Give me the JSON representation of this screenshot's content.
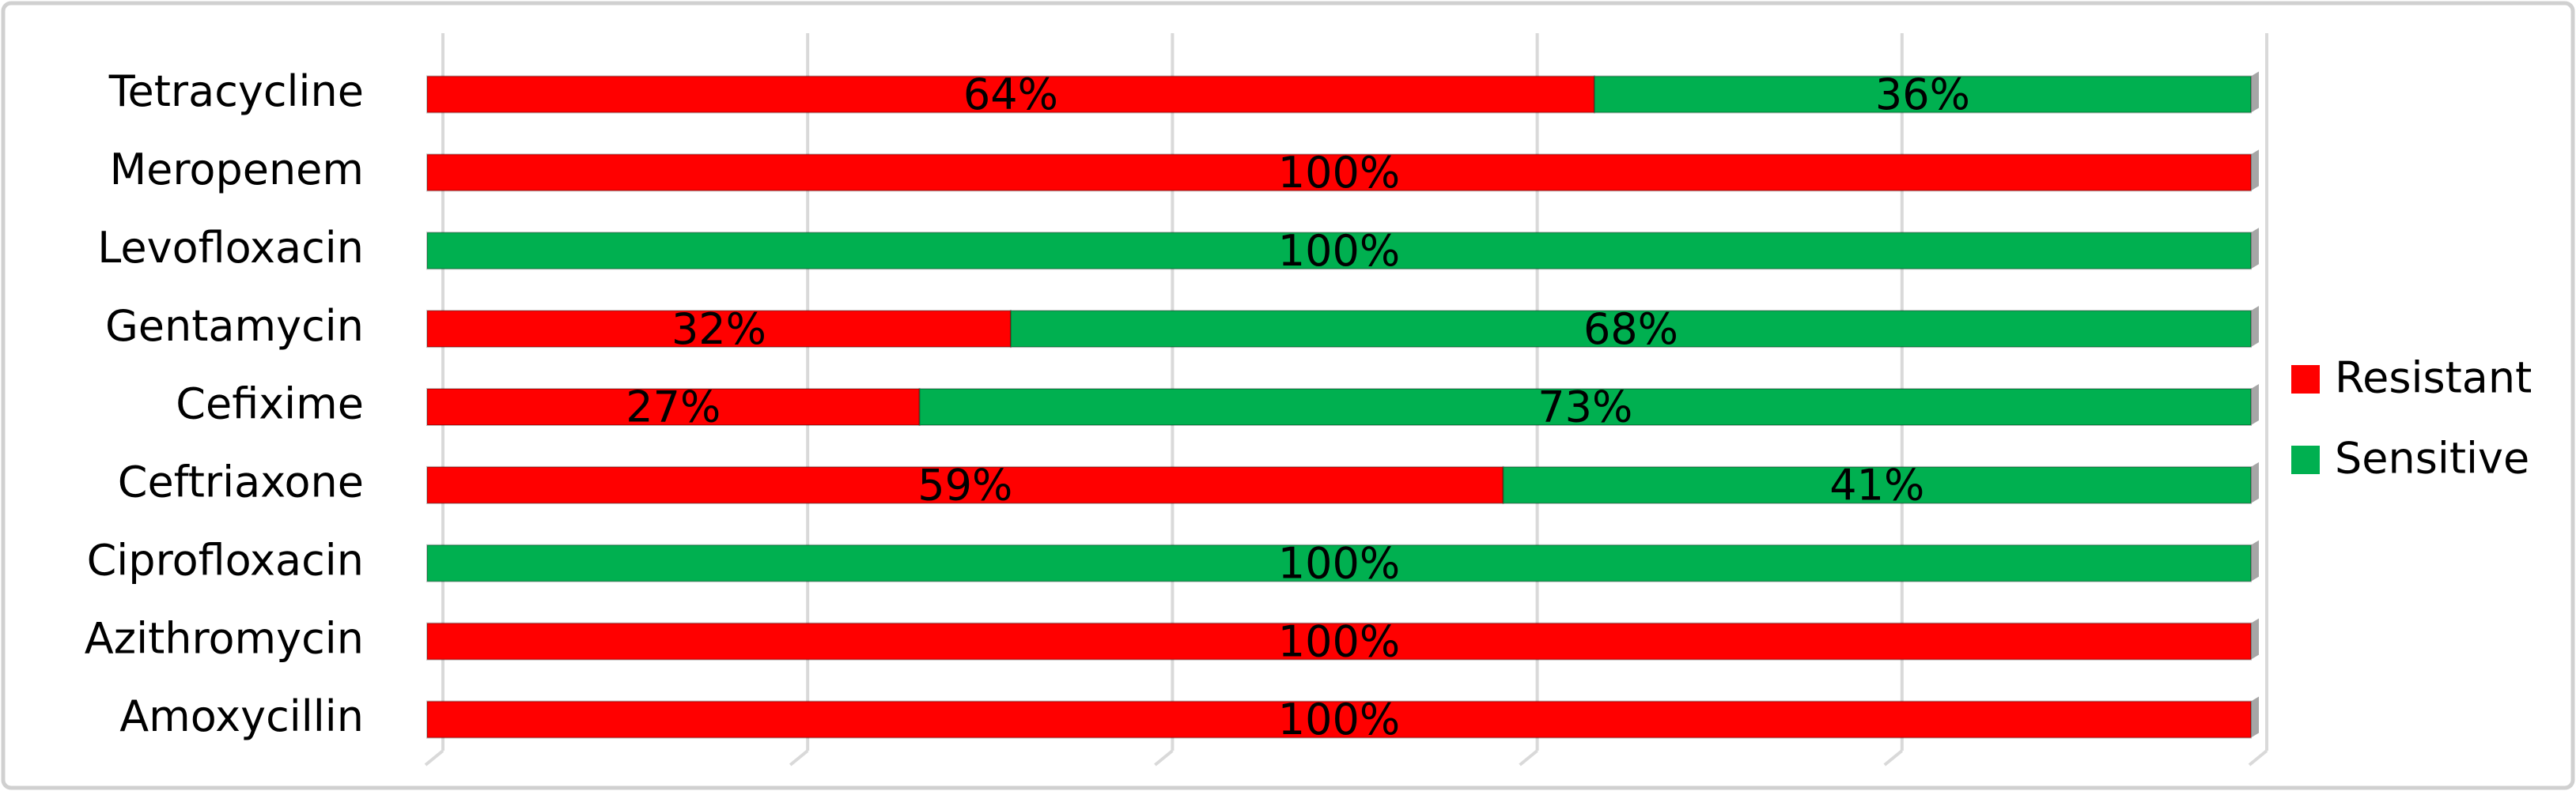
{
  "chart_data": {
    "type": "stacked-bar-horizontal",
    "categories": [
      "Tetracycline",
      "Meropenem",
      "Levofloxacin",
      "Gentamycin",
      "Cefixime",
      "Ceftriaxone",
      "Ciprofloxacin",
      "Azithromycin",
      "Amoxycillin"
    ],
    "series": [
      {
        "name": "Resistant",
        "color": "#ff0000",
        "values": [
          64,
          100,
          0,
          32,
          27,
          59,
          0,
          100,
          100
        ],
        "value_labels": [
          "64%",
          "100%",
          null,
          "32%",
          "27%",
          "59%",
          null,
          "100%",
          "100%"
        ]
      },
      {
        "name": "Sensitive",
        "color": "#00b050",
        "values": [
          36,
          0,
          100,
          68,
          73,
          41,
          100,
          0,
          0
        ],
        "value_labels": [
          "36%",
          null,
          "100%",
          "68%",
          "73%",
          "41%",
          "100%",
          null,
          null
        ]
      }
    ],
    "xlim": [
      0,
      100
    ],
    "xticks": [
      0,
      20,
      40,
      60,
      80,
      100
    ],
    "grid": true,
    "legend": "right"
  }
}
